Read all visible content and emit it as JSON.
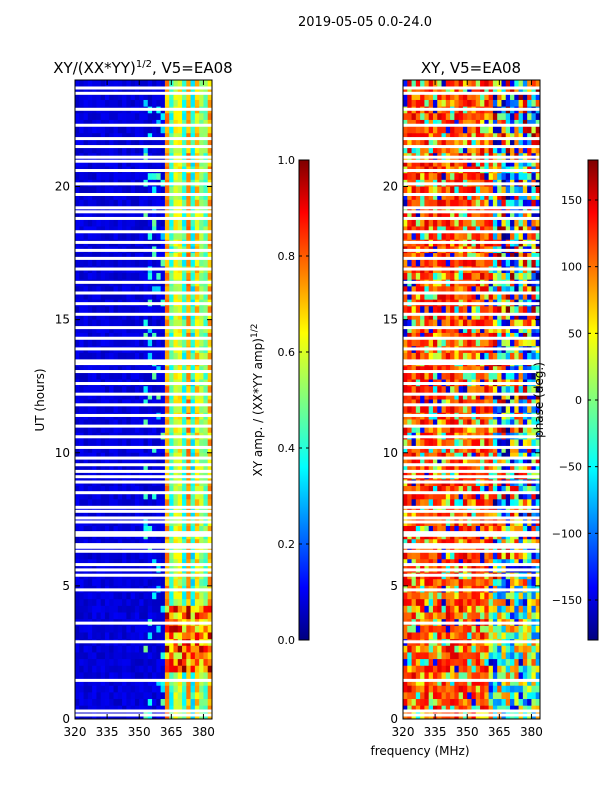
{
  "suptitle": "2019-05-05 0.0-24.0",
  "xlabel": "frequency (MHz)",
  "ylabel": "UT (hours)",
  "chart_data": [
    {
      "type": "heatmap",
      "title_text": "XY/(XX*YY)",
      "title_exp": "1/2",
      "title_suffix": ", V5=EA08",
      "xlim": [
        320,
        384
      ],
      "ylim": [
        0,
        24
      ],
      "xticks": [
        320,
        335,
        350,
        365,
        380
      ],
      "yticks": [
        0,
        5,
        10,
        15,
        20
      ],
      "colormap": "jet",
      "colorbar": {
        "label_text": "XY amp. / (XX*YY amp)",
        "label_exp": "1/2",
        "range": [
          0.0,
          1.0
        ],
        "ticks": [
          "0.0",
          "0.2",
          "0.4",
          "0.6",
          "0.8",
          "1.0"
        ]
      }
    },
    {
      "type": "heatmap",
      "title_text": "XY, V5=EA08",
      "xlim": [
        320,
        384
      ],
      "ylim": [
        0,
        24
      ],
      "xticks": [
        320,
        335,
        350,
        365,
        380
      ],
      "yticks": [
        0,
        5,
        10,
        15,
        20
      ],
      "colormap": "jet",
      "colorbar": {
        "label_text": "phase (deg.)",
        "range": [
          -180,
          180
        ],
        "ticks": [
          "−150",
          "−100",
          "−50",
          "0",
          "50",
          "100",
          "150"
        ]
      }
    }
  ],
  "flagged_hours": [
    0.15,
    0.3,
    1.45,
    2.9,
    3.6,
    4.85,
    5.4,
    5.6,
    5.8,
    6.3,
    6.45,
    6.55,
    6.9,
    7.0,
    7.4,
    7.55,
    7.8,
    7.95,
    8.5,
    8.9,
    9.1,
    9.3,
    9.55,
    9.8,
    10.2,
    10.6,
    11.0,
    11.4,
    11.8,
    12.2,
    12.6,
    13.05,
    13.35,
    13.45,
    13.9,
    14.3,
    14.7,
    15.2,
    15.6,
    16.0,
    16.4,
    16.9,
    17.3,
    17.6,
    17.9,
    18.3,
    18.8,
    19.05,
    19.2,
    19.7,
    20.1,
    20.6,
    20.95,
    21.1,
    21.5,
    21.8,
    22.3,
    22.9,
    23.5,
    23.7
  ],
  "colors": {
    "background": "#ffffff",
    "frame": "#000000"
  }
}
